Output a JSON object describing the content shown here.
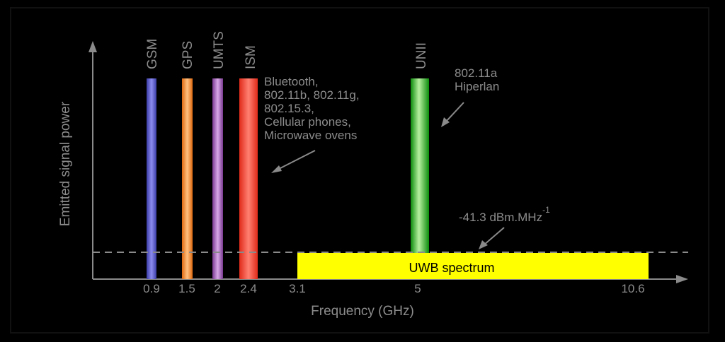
{
  "colors": {
    "background": "#000000",
    "axis": "#8a8a8a",
    "text": "#8c8c8c",
    "gsm": "#6a6ae0",
    "gps": "#ff9a40",
    "umts": "#b070c0",
    "ism": "#ff4030",
    "unii": "#30c030",
    "uwb": "#ffff00",
    "uwb_text": "#000000"
  },
  "axes": {
    "ylabel": "Emitted signal power",
    "xlabel": "Frequency (GHz)"
  },
  "bands": [
    {
      "name": "GSM",
      "tick": "0.9",
      "color_key": "gsm"
    },
    {
      "name": "GPS",
      "tick": "1.5",
      "color_key": "gps"
    },
    {
      "name": "UMTS",
      "tick": "2",
      "color_key": "umts"
    },
    {
      "name": "ISM",
      "tick": "2.4",
      "color_key": "ism"
    },
    {
      "name": "UNII",
      "tick": "5",
      "color_key": "unii"
    }
  ],
  "xticks": [
    "0.9",
    "1.5",
    "2",
    "2.4",
    "3.1",
    "5",
    "10.6"
  ],
  "annotations": {
    "ism_apps": [
      "Bluetooth,",
      "802.11b, 802.11g,",
      "802.15.3,",
      "Cellular phones,",
      "Microwave ovens"
    ],
    "unii_apps": [
      "802.11a",
      "Hiperlan"
    ],
    "limit_value": "-41.3 dBm.MHz",
    "limit_exp": "-1"
  },
  "uwb": {
    "label": "UWB spectrum",
    "from": "3.1",
    "to": "10.6"
  }
}
